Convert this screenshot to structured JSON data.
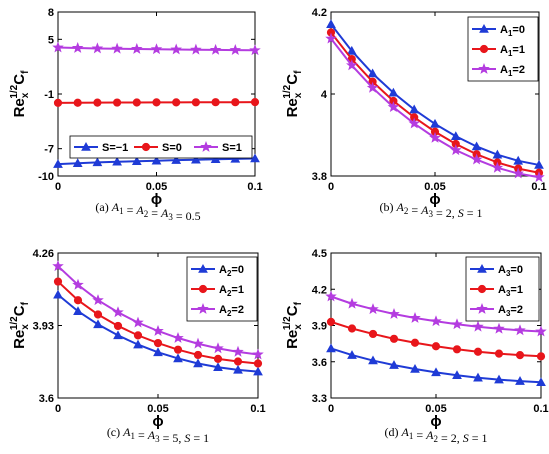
{
  "chart_data": [
    {
      "type": "line",
      "caption": "(a) A₁ = A₂ = A₃ = 0.5",
      "xlabel": "ϕ",
      "ylabel": {
        "base": "Re",
        "sub": "x",
        "sup": "1/2",
        "main": "C",
        "main_sub": "f"
      },
      "xlim": [
        0,
        0.1
      ],
      "ylim": [
        -10,
        8
      ],
      "xticks": [
        0,
        0.05,
        0.1
      ],
      "xtick_labels": [
        "0",
        "0.05",
        "0.1"
      ],
      "yticks": [
        -10,
        -7,
        -1,
        5,
        8
      ],
      "ytick_labels": [
        "-10",
        "-7",
        "-1",
        "5",
        "8"
      ],
      "legend_position": "lower-center",
      "legend_columns": 3,
      "x": [
        0,
        0.01,
        0.02,
        0.03,
        0.04,
        0.05,
        0.06,
        0.07,
        0.08,
        0.09,
        0.1
      ],
      "series": [
        {
          "name": "S=−1",
          "color": "#1f3bd6",
          "marker": "triangle",
          "values": [
            -8.7,
            -8.6,
            -8.5,
            -8.44,
            -8.38,
            -8.32,
            -8.26,
            -8.21,
            -8.16,
            -8.12,
            -8.08
          ]
        },
        {
          "name": "S=0",
          "color": "#e8161b",
          "marker": "circle",
          "values": [
            -1.97,
            -1.96,
            -1.95,
            -1.94,
            -1.93,
            -1.92,
            -1.92,
            -1.91,
            -1.9,
            -1.9,
            -1.89
          ]
        },
        {
          "name": "S=1",
          "color": "#b43ce0",
          "marker": "star",
          "values": [
            4.1,
            4.05,
            4.0,
            3.97,
            3.94,
            3.91,
            3.88,
            3.86,
            3.84,
            3.82,
            3.8
          ]
        }
      ]
    },
    {
      "type": "line",
      "caption": "(b) A₂ = A₃ = 2, S = 1",
      "xlabel": "ϕ",
      "ylabel": {
        "base": "Re",
        "sub": "x",
        "sup": "1/2",
        "main": "C",
        "main_sub": "f"
      },
      "xlim": [
        0,
        0.1
      ],
      "ylim": [
        3.8,
        4.2
      ],
      "xticks": [
        0,
        0.05,
        0.1
      ],
      "xtick_labels": [
        "0",
        "0.05",
        "0.1"
      ],
      "yticks": [
        3.8,
        4,
        4.2
      ],
      "ytick_labels": [
        "3.8",
        "4",
        "4.2"
      ],
      "legend_position": "top-right",
      "legend_columns": 1,
      "x": [
        0,
        0.01,
        0.02,
        0.03,
        0.04,
        0.05,
        0.06,
        0.07,
        0.08,
        0.09,
        0.1
      ],
      "series": [
        {
          "name": "A₁=0",
          "color": "#1f3bd6",
          "marker": "triangle",
          "values": [
            4.17,
            4.105,
            4.05,
            4.003,
            3.962,
            3.927,
            3.897,
            3.872,
            3.852,
            3.837,
            3.827
          ]
        },
        {
          "name": "A₁=1",
          "color": "#e8161b",
          "marker": "circle",
          "values": [
            4.15,
            4.085,
            4.03,
            3.983,
            3.943,
            3.908,
            3.878,
            3.853,
            3.833,
            3.818,
            3.808
          ]
        },
        {
          "name": "A₁=2",
          "color": "#b43ce0",
          "marker": "star",
          "values": [
            4.135,
            4.07,
            4.015,
            3.968,
            3.928,
            3.893,
            3.863,
            3.84,
            3.82,
            3.806,
            3.797
          ]
        }
      ]
    },
    {
      "type": "line",
      "caption": "(c) A₁ = A₃ = 5, S = 1",
      "xlabel": "ϕ",
      "ylabel": {
        "base": "Re",
        "sub": "x",
        "sup": "1/2",
        "main": "C",
        "main_sub": "f"
      },
      "xlim": [
        0,
        0.1
      ],
      "ylim": [
        3.6,
        4.26
      ],
      "xticks": [
        0,
        0.05,
        0.1
      ],
      "xtick_labels": [
        "0",
        "0.05",
        "0.1"
      ],
      "yticks": [
        3.6,
        3.93,
        4.26
      ],
      "ytick_labels": [
        "3.6",
        "3.93",
        "4.26"
      ],
      "legend_position": "top-right",
      "legend_columns": 1,
      "x": [
        0,
        0.01,
        0.02,
        0.03,
        0.04,
        0.05,
        0.06,
        0.07,
        0.08,
        0.09,
        0.1
      ],
      "series": [
        {
          "name": "A₂=0",
          "color": "#1f3bd6",
          "marker": "triangle",
          "values": [
            4.07,
            3.995,
            3.935,
            3.885,
            3.843,
            3.808,
            3.78,
            3.757,
            3.74,
            3.728,
            3.72
          ]
        },
        {
          "name": "A₂=1",
          "color": "#e8161b",
          "marker": "circle",
          "values": [
            4.13,
            4.045,
            3.98,
            3.928,
            3.885,
            3.85,
            3.82,
            3.796,
            3.778,
            3.766,
            3.757
          ]
        },
        {
          "name": "A₂=2",
          "color": "#b43ce0",
          "marker": "star",
          "values": [
            4.2,
            4.115,
            4.045,
            3.99,
            3.943,
            3.905,
            3.873,
            3.847,
            3.826,
            3.81,
            3.798
          ]
        }
      ]
    },
    {
      "type": "line",
      "caption": "(d) A₁ = A₂ = 2, S = 1",
      "xlabel": "ϕ",
      "ylabel": {
        "base": "Re",
        "sub": "x",
        "sup": "1/2",
        "main": "C",
        "main_sub": "f"
      },
      "xlim": [
        0,
        0.1
      ],
      "ylim": [
        3.3,
        4.5
      ],
      "xticks": [
        0,
        0.05,
        0.1
      ],
      "xtick_labels": [
        "0",
        "0.05",
        "0.1"
      ],
      "yticks": [
        3.3,
        3.6,
        3.9,
        4.2,
        4.5
      ],
      "ytick_labels": [
        "3.3",
        "3.6",
        "3.9",
        "4.2",
        "4.5"
      ],
      "legend_position": "top-right",
      "legend_columns": 1,
      "x": [
        0,
        0.01,
        0.02,
        0.03,
        0.04,
        0.05,
        0.06,
        0.07,
        0.08,
        0.09,
        0.1
      ],
      "series": [
        {
          "name": "A₃=0",
          "color": "#1f3bd6",
          "marker": "triangle",
          "values": [
            3.71,
            3.655,
            3.61,
            3.572,
            3.54,
            3.512,
            3.488,
            3.468,
            3.452,
            3.44,
            3.43
          ]
        },
        {
          "name": "A₃=1",
          "color": "#e8161b",
          "marker": "circle",
          "values": [
            3.93,
            3.875,
            3.83,
            3.79,
            3.757,
            3.728,
            3.703,
            3.683,
            3.667,
            3.655,
            3.645
          ]
        },
        {
          "name": "A₃=2",
          "color": "#b43ce0",
          "marker": "star",
          "values": [
            4.14,
            4.08,
            4.035,
            3.995,
            3.962,
            3.935,
            3.91,
            3.89,
            3.873,
            3.86,
            3.85
          ]
        }
      ]
    }
  ]
}
